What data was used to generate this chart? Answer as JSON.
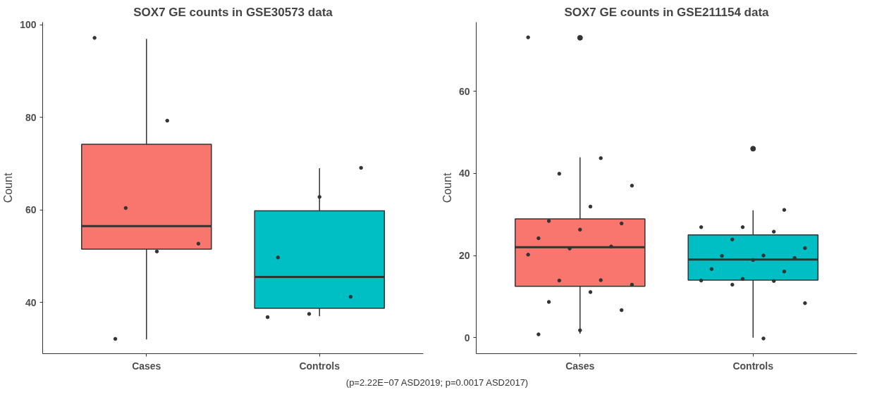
{
  "chart_data": [
    {
      "type": "box",
      "title": "SOX7 GE counts in GSE30573 data",
      "ylabel": "Count",
      "categories": [
        "Cases",
        "Controls"
      ],
      "colors": [
        "#f8766d",
        "#00bfc4"
      ],
      "boxes": [
        {
          "low": 32,
          "q1": 51.5,
          "median": 56.5,
          "q3": 74.2,
          "high": 97
        },
        {
          "low": 37,
          "q1": 38.7,
          "median": 45.5,
          "q3": 59.8,
          "high": 69
        }
      ],
      "series": [
        {
          "type": "scatter",
          "color": "#333333",
          "x": [
            "Cases",
            "Cases",
            "Cases",
            "Cases",
            "Cases",
            "Cases",
            "Controls",
            "Controls",
            "Controls",
            "Controls",
            "Controls",
            "Controls"
          ],
          "values": [
            97.2,
            79.3,
            60.4,
            52.7,
            51.0,
            32.1,
            69.1,
            62.8,
            49.7,
            41.2,
            37.5,
            36.8
          ]
        }
      ],
      "marker": "circle",
      "ylim": [
        28.9,
        100.6
      ],
      "yticks": [
        40,
        60,
        80,
        100
      ],
      "grid": false
    },
    {
      "type": "box",
      "title": "SOX7 GE counts in GSE211154 data",
      "ylabel": "Count",
      "categories": [
        "Cases",
        "Controls"
      ],
      "colors": [
        "#f8766d",
        "#00bfc4"
      ],
      "boxes": [
        {
          "low": 1.0,
          "q1": 12.5,
          "median": 22.0,
          "q3": 28.9,
          "high": 43.9,
          "outliers": [
            73.0
          ]
        },
        {
          "low": 0,
          "q1": 14.0,
          "median": 19.0,
          "q3": 25.0,
          "high": 31.0,
          "outliers": [
            46.0
          ]
        }
      ],
      "series": [
        {
          "type": "scatter",
          "color": "#333333",
          "x": [
            "Cases",
            "Cases",
            "Cases",
            "Cases",
            "Cases",
            "Cases",
            "Cases",
            "Cases",
            "Cases",
            "Cases",
            "Cases",
            "Cases",
            "Cases",
            "Cases",
            "Cases",
            "Cases",
            "Cases",
            "Cases",
            "Cases",
            "Cases",
            "Controls",
            "Controls",
            "Controls",
            "Controls",
            "Controls",
            "Controls",
            "Controls",
            "Controls",
            "Controls",
            "Controls",
            "Controls",
            "Controls",
            "Controls",
            "Controls",
            "Controls",
            "Controls",
            "Controls",
            "Controls"
          ],
          "values": [
            73.1,
            43.7,
            39.9,
            37.0,
            31.9,
            28.4,
            27.8,
            26.3,
            24.2,
            22.2,
            21.7,
            20.2,
            14.0,
            13.9,
            12.9,
            11.1,
            8.7,
            6.7,
            1.8,
            0.8,
            31.1,
            26.9,
            26.9,
            25.8,
            23.9,
            21.8,
            20.0,
            19.9,
            19.4,
            18.9,
            16.7,
            16.1,
            14.3,
            13.9,
            13.8,
            12.9,
            8.4,
            -0.2
          ]
        }
      ],
      "marker": "circle",
      "ylim": [
        -3.9,
        76.8
      ],
      "yticks": [
        0,
        20,
        40,
        60
      ],
      "grid": false,
      "annotations": [
        "(p=2.22E−07 ASD2019; p=0.0017 ASD2017)"
      ]
    }
  ]
}
